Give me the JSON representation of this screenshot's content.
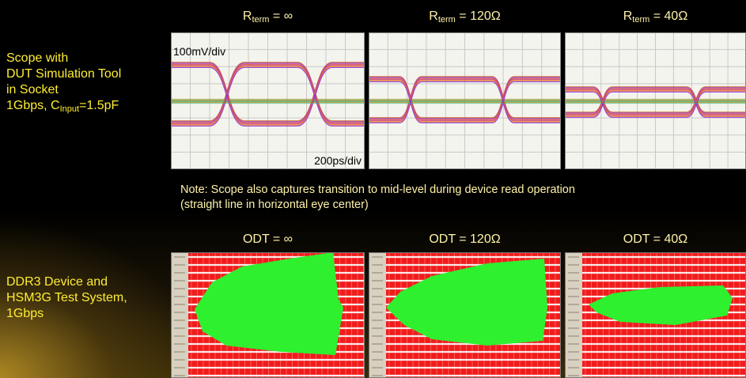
{
  "top_row": {
    "label_lines": [
      "Scope with",
      "DUT Simulation Tool",
      "in Socket"
    ],
    "label_last": {
      "main": "1Gbps, C",
      "sub": "Input",
      "rest": "=1.5pF"
    },
    "headers": [
      {
        "main": "R",
        "sub": "term",
        "rest": " = ∞"
      },
      {
        "main": "R",
        "sub": "term",
        "rest": " = 120Ω"
      },
      {
        "main": "R",
        "sub": "term",
        "rest": " = 40Ω"
      }
    ],
    "scale_labels": {
      "vertical": "100mV/div",
      "horizontal": "200ps/div"
    }
  },
  "note": {
    "lines": [
      "Note: Scope also captures transition to mid-level during device read operation",
      "(straight line in horizontal eye center)"
    ]
  },
  "bottom_row": {
    "label_lines": [
      "DDR3 Device and",
      "HSM3G Test System,",
      "1Gbps"
    ],
    "headers": [
      "ODT = ∞",
      "ODT = 120Ω",
      "ODT = 40Ω"
    ]
  }
}
